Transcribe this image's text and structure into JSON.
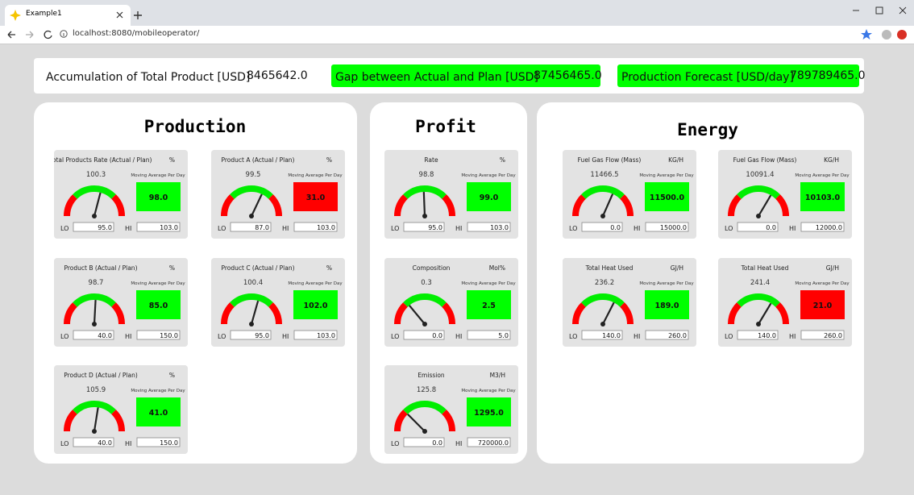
{
  "browser": {
    "tab_title": "Example1",
    "url": "localhost:8080/mobileoperator/"
  },
  "summary": [
    {
      "label": "Accumulation of Total Product [USD]",
      "value": "8465642.0",
      "color": "#ffffff"
    },
    {
      "label": "Gap between Actual and Plan [USD]",
      "value": "87456465.0",
      "color": "#00ff00"
    },
    {
      "label": "Production Forecast [USD/day]",
      "value": "789789465.0",
      "color": "#00ff00"
    }
  ],
  "labels": {
    "moving_average": "Moving Average Per Day",
    "lo": "LO",
    "hi": "HI"
  },
  "panels": [
    {
      "title": "Production",
      "gauges": [
        {
          "title": "Total Products Rate (Actual / Plan)",
          "unit": "%",
          "value": "100.3",
          "average": "98.0",
          "box_color": "#00ff00",
          "lo": "95.0",
          "hi": "103.0"
        },
        {
          "title": "Product A (Actual / Plan)",
          "unit": "%",
          "value": "99.5",
          "average": "31.0",
          "box_color": "#ff0000",
          "lo": "87.0",
          "hi": "103.0"
        },
        {
          "title": "Product B (Actual / Plan)",
          "unit": "%",
          "value": "98.7",
          "average": "85.0",
          "box_color": "#00ff00",
          "lo": "40.0",
          "hi": "150.0"
        },
        {
          "title": "Product C (Actual / Plan)",
          "unit": "%",
          "value": "100.4",
          "average": "102.0",
          "box_color": "#00ff00",
          "lo": "95.0",
          "hi": "103.0"
        },
        {
          "title": "Product D (Actual / Plan)",
          "unit": "%",
          "value": "105.9",
          "average": "41.0",
          "box_color": "#00ff00",
          "lo": "40.0",
          "hi": "150.0"
        }
      ]
    },
    {
      "title": "Profit",
      "gauges": [
        {
          "title": "Rate",
          "unit": "%",
          "value": "98.8",
          "average": "99.0",
          "box_color": "#00ff00",
          "lo": "95.0",
          "hi": "103.0"
        },
        {
          "title": "Composition",
          "unit": "Mol%",
          "value": "0.3",
          "average": "2.5",
          "box_color": "#00ff00",
          "lo": "0.0",
          "hi": "5.0"
        },
        {
          "title": "Emission",
          "unit": "M3/H",
          "value": "125.8",
          "average": "1295.0",
          "box_color": "#00ff00",
          "lo": "0.0",
          "hi": "720000.0"
        }
      ]
    },
    {
      "title": "Energy",
      "gauges": [
        {
          "title": "Fuel Gas Flow (Mass)",
          "unit": "KG/H",
          "value": "11466.5",
          "average": "11500.0",
          "box_color": "#00ff00",
          "lo": "0.0",
          "hi": "15000.0"
        },
        {
          "title": "Fuel Gas Flow (Mass)",
          "unit": "KG/H",
          "value": "10091.4",
          "average": "10103.0",
          "box_color": "#00ff00",
          "lo": "0.0",
          "hi": "12000.0"
        },
        {
          "title": "Total Heat Used",
          "unit": "GJ/H",
          "value": "236.2",
          "average": "189.0",
          "box_color": "#00ff00",
          "lo": "140.0",
          "hi": "260.0"
        },
        {
          "title": "Total Heat Used",
          "unit": "GJ/H",
          "value": "241.4",
          "average": "21.0",
          "box_color": "#ff0000",
          "lo": "140.0",
          "hi": "260.0"
        }
      ]
    }
  ]
}
